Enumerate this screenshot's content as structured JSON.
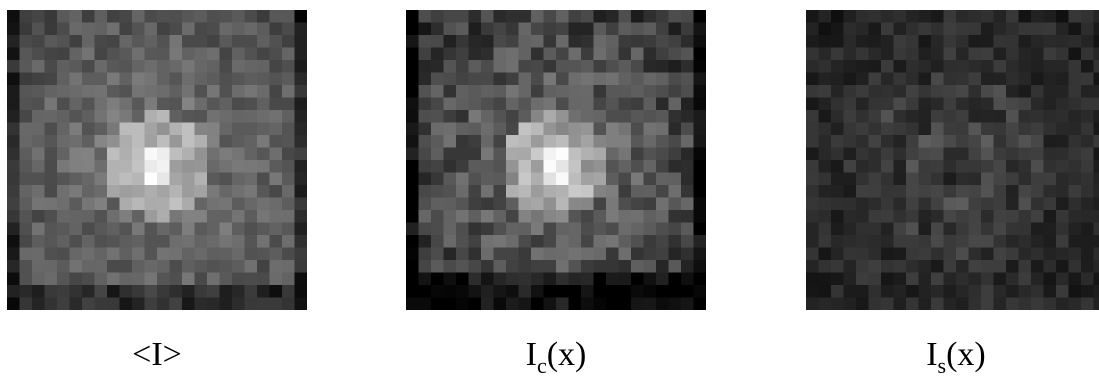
{
  "panels": [
    {
      "caption": "<I>",
      "caption_base": "",
      "caption_sub": "",
      "caption_tail": "",
      "image_description_icon": "radial-intensity-map-icon"
    },
    {
      "caption": "",
      "caption_base": "I",
      "caption_sub": "c",
      "caption_tail": "(x)",
      "image_description_icon": "radial-intensity-map-icon"
    },
    {
      "caption": "",
      "caption_base": "I",
      "caption_sub": "s",
      "caption_tail": "(x)",
      "image_description_icon": "ring-intensity-map-icon"
    }
  ],
  "colors": {
    "background": "#ffffff",
    "text": "#000000"
  }
}
